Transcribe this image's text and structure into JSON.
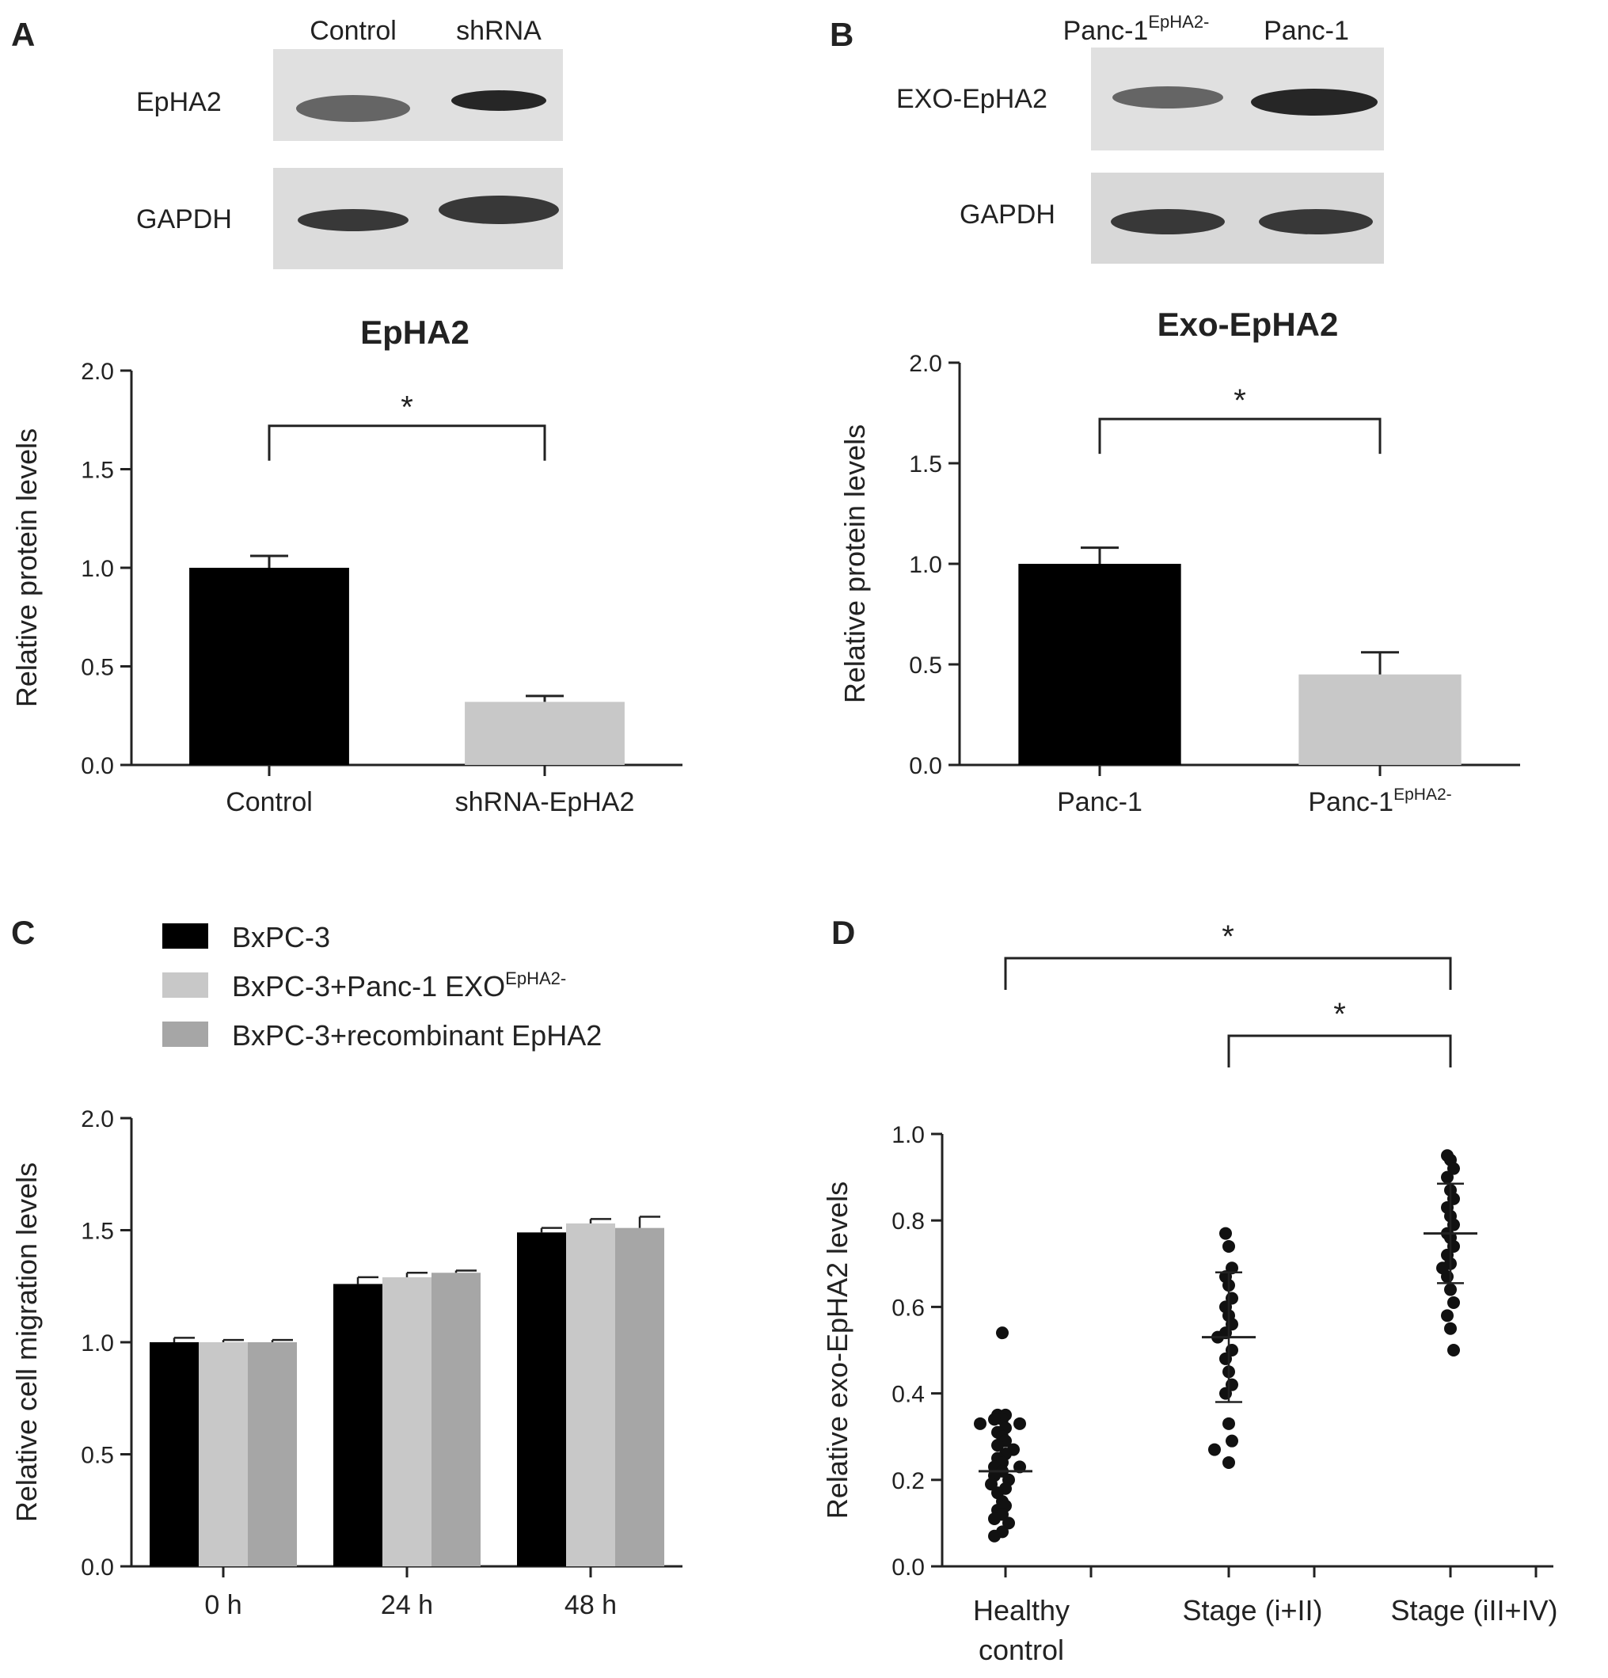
{
  "panels": {
    "A": {
      "letter": "A",
      "blot": {
        "lane_labels": [
          "Control",
          "shRNA"
        ],
        "row_labels": [
          "EpHA2",
          "GAPDH"
        ],
        "band_intensity": [
          [
            1.0,
            0.5
          ],
          [
            0.85,
            1.0
          ]
        ]
      }
    },
    "B": {
      "letter": "B",
      "blot": {
        "lane_labels": [
          {
            "text": "Panc-1",
            "sup": "EpHA2-"
          },
          {
            "text": "Panc-1",
            "sup": ""
          }
        ],
        "row_labels": [
          "EXO-EpHA2",
          "GAPDH"
        ],
        "band_intensity": [
          [
            0.55,
            0.9
          ],
          [
            0.8,
            0.8
          ]
        ]
      }
    },
    "C": {
      "letter": "C"
    },
    "D": {
      "letter": "D"
    }
  },
  "chart_data": [
    {
      "id": "A",
      "type": "bar",
      "title": "EpHA2",
      "ylabel": "Relative protein levels",
      "ylim": [
        0,
        2.0
      ],
      "yticks": [
        "0.0",
        "0.5",
        "1.0",
        "1.5",
        "2.0"
      ],
      "categories": [
        {
          "text": "Control",
          "sup": ""
        },
        {
          "text": "shRNA-EpHA2",
          "sup": ""
        }
      ],
      "values": [
        1.0,
        0.32
      ],
      "errors": [
        0.06,
        0.03
      ],
      "colors": [
        "#000000",
        "#c8c8c8"
      ],
      "significance": [
        {
          "from": 0,
          "to": 1,
          "label": "*",
          "y": 1.72
        }
      ]
    },
    {
      "id": "B",
      "type": "bar",
      "title": "Exo-EpHA2",
      "ylabel": "Relative protein levels",
      "ylim": [
        0,
        2.0
      ],
      "yticks": [
        "0.0",
        "0.5",
        "1.0",
        "1.5",
        "2.0"
      ],
      "categories": [
        {
          "text": "Panc-1",
          "sup": ""
        },
        {
          "text": "Panc-1",
          "sup": "EpHA2-"
        }
      ],
      "values": [
        1.0,
        0.45
      ],
      "errors": [
        0.08,
        0.11
      ],
      "colors": [
        "#000000",
        "#c8c8c8"
      ],
      "significance": [
        {
          "from": 0,
          "to": 1,
          "label": "*",
          "y": 1.72
        }
      ]
    },
    {
      "id": "C",
      "type": "bar",
      "ylabel": "Relative cell migration levels",
      "ylim": [
        0,
        2.0
      ],
      "yticks": [
        "0.0",
        "0.5",
        "1.0",
        "1.5",
        "2.0"
      ],
      "categories": [
        "0 h",
        "24 h",
        "48 h"
      ],
      "series": [
        {
          "name": "BxPC-3",
          "name_sup": "",
          "color": "#000000",
          "values": [
            1.0,
            1.26,
            1.49
          ],
          "errors": [
            0.02,
            0.03,
            0.02
          ]
        },
        {
          "name": "BxPC-3+Panc-1 EXO",
          "name_sup": "EpHA2-",
          "color": "#c8c8c8",
          "values": [
            1.0,
            1.29,
            1.53
          ],
          "errors": [
            0.01,
            0.02,
            0.02
          ]
        },
        {
          "name": "BxPC-3+recombinant EpHA2",
          "name_sup": "",
          "color": "#a6a6a6",
          "values": [
            1.0,
            1.31,
            1.51
          ],
          "errors": [
            0.01,
            0.01,
            0.05
          ]
        }
      ],
      "legend_position": "top-left"
    },
    {
      "id": "D",
      "type": "scatter",
      "ylabel": "Relative exo-EpHA2 levels",
      "ylim": [
        0,
        1.0
      ],
      "yticks": [
        "0.0",
        "0.2",
        "0.4",
        "0.6",
        "0.8",
        "1.0"
      ],
      "categories": [
        "Healthy control",
        "Stage (i+II)",
        "Stage (iII+IV)"
      ],
      "category_lines": [
        [
          "Healthy",
          "control"
        ],
        [
          "Stage (i+II)"
        ],
        [
          "Stage (iII+IV)"
        ]
      ],
      "groups": [
        {
          "name": "Healthy control",
          "mean": 0.22,
          "points": [
            0.54,
            0.35,
            0.35,
            0.34,
            0.34,
            0.33,
            0.33,
            0.32,
            0.31,
            0.3,
            0.29,
            0.28,
            0.27,
            0.26,
            0.25,
            0.24,
            0.23,
            0.23,
            0.22,
            0.21,
            0.2,
            0.19,
            0.18,
            0.17,
            0.15,
            0.14,
            0.13,
            0.12,
            0.11,
            0.1,
            0.08,
            0.07
          ]
        },
        {
          "name": "Stage (i+II)",
          "mean": 0.53,
          "sd": 0.15,
          "points": [
            0.77,
            0.74,
            0.69,
            0.67,
            0.65,
            0.62,
            0.6,
            0.58,
            0.56,
            0.54,
            0.53,
            0.5,
            0.48,
            0.45,
            0.42,
            0.4,
            0.33,
            0.29,
            0.27,
            0.24
          ]
        },
        {
          "name": "Stage (iII+IV)",
          "mean": 0.77,
          "sd": 0.115,
          "points": [
            0.95,
            0.94,
            0.92,
            0.9,
            0.87,
            0.85,
            0.83,
            0.81,
            0.79,
            0.77,
            0.76,
            0.74,
            0.72,
            0.7,
            0.69,
            0.67,
            0.64,
            0.61,
            0.58,
            0.55,
            0.5
          ]
        }
      ],
      "significance": [
        {
          "from": 0,
          "to": 2,
          "label": "*"
        },
        {
          "from": 1,
          "to": 2,
          "label": "*"
        }
      ]
    }
  ]
}
